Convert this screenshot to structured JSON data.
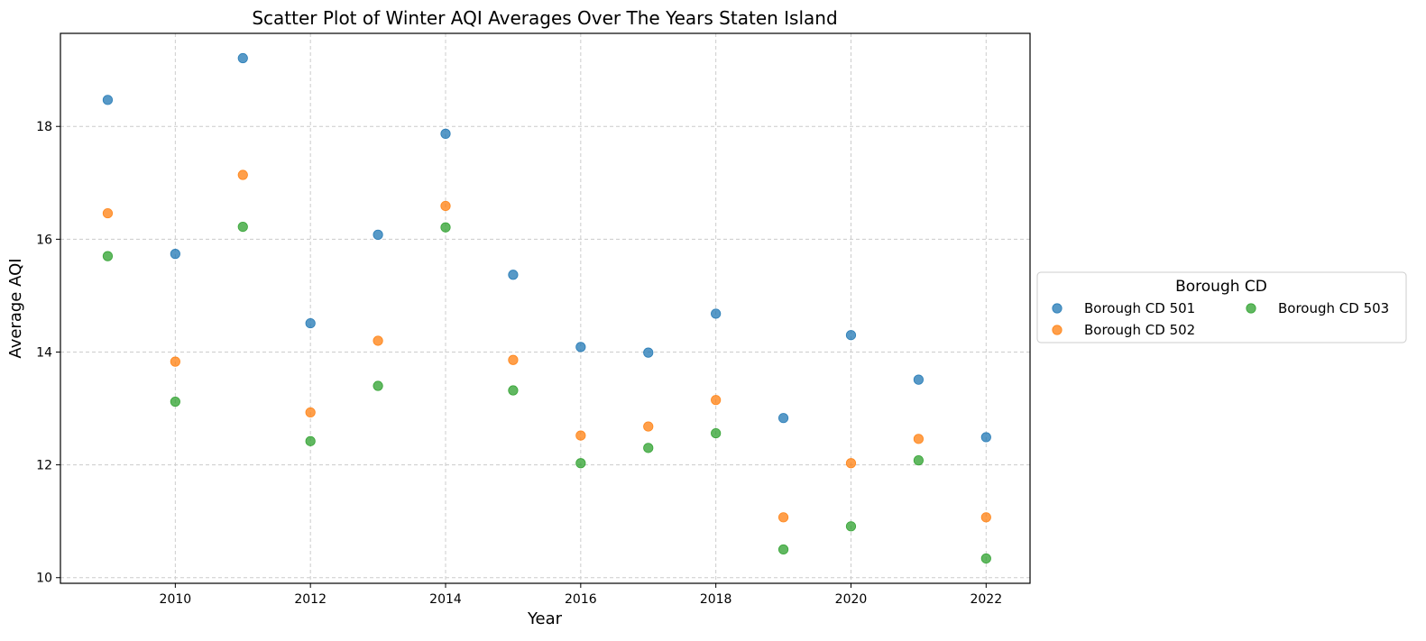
{
  "chart_data": {
    "type": "scatter",
    "title": "Scatter Plot of Winter AQI Averages Over The Years Staten Island",
    "xlabel": "Year",
    "ylabel": "Average AQI",
    "xlim": [
      2008.3,
      2022.65
    ],
    "ylim": [
      9.9,
      19.65
    ],
    "xticks": [
      2010,
      2012,
      2014,
      2016,
      2018,
      2020,
      2022
    ],
    "yticks": [
      10,
      12,
      14,
      16,
      18
    ],
    "grid": true,
    "legend": {
      "title": "Borough CD",
      "placement": "center-right outside",
      "columns": 2
    },
    "x": [
      2009,
      2010,
      2011,
      2012,
      2013,
      2014,
      2015,
      2016,
      2017,
      2018,
      2019,
      2020,
      2021,
      2022
    ],
    "series": [
      {
        "name": "Borough CD 501",
        "color": "#1f77b4",
        "values": [
          18.47,
          15.74,
          19.21,
          14.51,
          16.08,
          17.87,
          15.37,
          14.09,
          13.99,
          14.68,
          12.83,
          14.3,
          13.51,
          12.49
        ]
      },
      {
        "name": "Borough CD 502",
        "color": "#ff7f0e",
        "values": [
          16.46,
          13.83,
          17.14,
          12.93,
          14.2,
          16.59,
          13.86,
          12.52,
          12.68,
          13.15,
          11.07,
          12.03,
          12.46,
          11.07
        ]
      },
      {
        "name": "Borough CD 503",
        "color": "#2ca02c",
        "values": [
          15.7,
          13.12,
          16.22,
          12.42,
          13.4,
          16.21,
          13.32,
          12.03,
          12.3,
          12.56,
          10.5,
          10.91,
          12.08,
          10.34
        ]
      }
    ]
  }
}
